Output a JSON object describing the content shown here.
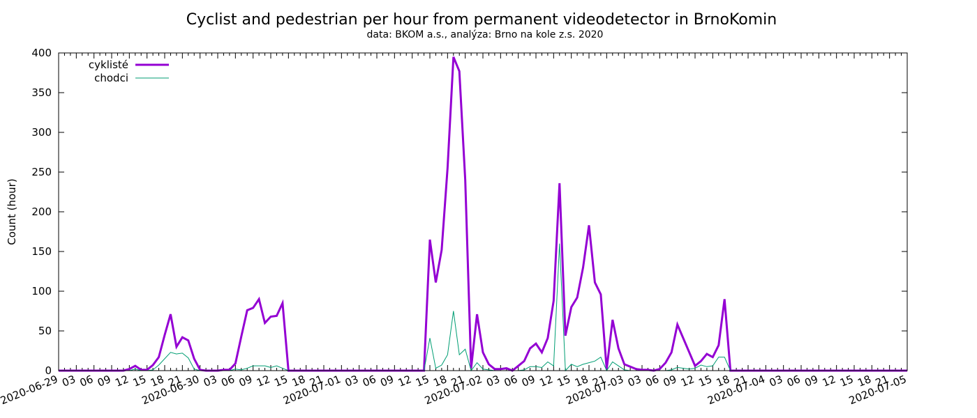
{
  "chart_data": {
    "type": "line",
    "title": "Cyclist and pedestrian per hour from permanent videodetector in BrnoKomin",
    "subtitle": "data: BKOM a.s., analýza: Brno na kole z.s. 2020",
    "xlabel": "",
    "ylabel": "Count (hour)",
    "ylim": [
      0,
      400
    ],
    "yticks": [
      0,
      50,
      100,
      150,
      200,
      250,
      300,
      350,
      400
    ],
    "xlim": [
      "2020-06-29 00:00",
      "2020-07-05 00:00"
    ],
    "x_tick_labels": [
      "2020-06-29",
      "03",
      "06",
      "09",
      "12",
      "15",
      "18",
      "21",
      "2020-06-30",
      "03",
      "06",
      "09",
      "12",
      "15",
      "18",
      "21",
      "2020-07-01",
      "03",
      "06",
      "09",
      "12",
      "15",
      "18",
      "21",
      "2020-07-02",
      "03",
      "06",
      "09",
      "12",
      "15",
      "18",
      "21",
      "2020-07-03",
      "03",
      "06",
      "09",
      "12",
      "15",
      "18",
      "21",
      "2020-07-04",
      "03",
      "06",
      "09",
      "12",
      "15",
      "18",
      "21",
      "2020-07-05"
    ],
    "legend_position": "top-left",
    "grid": false,
    "series": [
      {
        "name": "cyklisté",
        "color": "#9400d3",
        "points": [
          [
            "2020-06-29 00:00",
            0
          ],
          [
            "2020-06-29 11:00",
            0
          ],
          [
            "2020-06-29 12:00",
            2
          ],
          [
            "2020-06-29 13:00",
            6
          ],
          [
            "2020-06-29 14:00",
            1
          ],
          [
            "2020-06-29 15:00",
            1
          ],
          [
            "2020-06-29 16:00",
            7
          ],
          [
            "2020-06-29 17:00",
            17
          ],
          [
            "2020-06-29 18:00",
            45
          ],
          [
            "2020-06-29 19:00",
            71
          ],
          [
            "2020-06-29 20:00",
            30
          ],
          [
            "2020-06-29 21:00",
            42
          ],
          [
            "2020-06-29 22:00",
            38
          ],
          [
            "2020-06-29 23:00",
            15
          ],
          [
            "2020-06-30 00:00",
            1
          ],
          [
            "2020-06-30 01:00",
            0
          ],
          [
            "2020-06-30 02:00",
            0
          ],
          [
            "2020-06-30 03:00",
            0
          ],
          [
            "2020-06-30 04:00",
            1
          ],
          [
            "2020-06-30 05:00",
            1
          ],
          [
            "2020-06-30 06:00",
            9
          ],
          [
            "2020-06-30 07:00",
            43
          ],
          [
            "2020-06-30 08:00",
            76
          ],
          [
            "2020-06-30 09:00",
            79
          ],
          [
            "2020-06-30 10:00",
            90
          ],
          [
            "2020-06-30 11:00",
            60
          ],
          [
            "2020-06-30 12:00",
            68
          ],
          [
            "2020-06-30 13:00",
            69
          ],
          [
            "2020-06-30 14:00",
            85
          ],
          [
            "2020-06-30 15:00",
            0
          ],
          [
            "2020-07-01 00:00",
            0
          ],
          [
            "2020-07-01 12:00",
            0
          ],
          [
            "2020-07-01 14:00",
            0
          ],
          [
            "2020-07-01 15:00",
            165
          ],
          [
            "2020-07-01 16:00",
            111
          ],
          [
            "2020-07-01 17:00",
            152
          ],
          [
            "2020-07-01 18:00",
            255
          ],
          [
            "2020-07-01 19:00",
            395
          ],
          [
            "2020-07-01 20:00",
            377
          ],
          [
            "2020-07-01 21:00",
            240
          ],
          [
            "2020-07-01 22:00",
            3
          ],
          [
            "2020-07-01 23:00",
            71
          ],
          [
            "2020-07-02 00:00",
            23
          ],
          [
            "2020-07-02 01:00",
            8
          ],
          [
            "2020-07-02 02:00",
            2
          ],
          [
            "2020-07-02 03:00",
            2
          ],
          [
            "2020-07-02 04:00",
            3
          ],
          [
            "2020-07-02 05:00",
            0
          ],
          [
            "2020-07-02 06:00",
            6
          ],
          [
            "2020-07-02 07:00",
            12
          ],
          [
            "2020-07-02 08:00",
            28
          ],
          [
            "2020-07-02 09:00",
            34
          ],
          [
            "2020-07-02 10:00",
            23
          ],
          [
            "2020-07-02 11:00",
            41
          ],
          [
            "2020-07-02 12:00",
            88
          ],
          [
            "2020-07-02 13:00",
            236
          ],
          [
            "2020-07-02 14:00",
            44
          ],
          [
            "2020-07-02 15:00",
            80
          ],
          [
            "2020-07-02 16:00",
            92
          ],
          [
            "2020-07-02 17:00",
            130
          ],
          [
            "2020-07-02 18:00",
            183
          ],
          [
            "2020-07-02 19:00",
            111
          ],
          [
            "2020-07-02 20:00",
            96
          ],
          [
            "2020-07-02 21:00",
            2
          ],
          [
            "2020-07-02 22:00",
            64
          ],
          [
            "2020-07-02 23:00",
            28
          ],
          [
            "2020-07-03 00:00",
            8
          ],
          [
            "2020-07-03 01:00",
            5
          ],
          [
            "2020-07-03 02:00",
            2
          ],
          [
            "2020-07-03 03:00",
            1
          ],
          [
            "2020-07-03 04:00",
            1
          ],
          [
            "2020-07-03 05:00",
            0
          ],
          [
            "2020-07-03 06:00",
            2
          ],
          [
            "2020-07-03 07:00",
            10
          ],
          [
            "2020-07-03 08:00",
            23
          ],
          [
            "2020-07-03 09:00",
            58
          ],
          [
            "2020-07-03 12:00",
            6
          ],
          [
            "2020-07-03 13:00",
            12
          ],
          [
            "2020-07-03 14:00",
            21
          ],
          [
            "2020-07-03 15:00",
            17
          ],
          [
            "2020-07-03 16:00",
            32
          ],
          [
            "2020-07-03 17:00",
            90
          ],
          [
            "2020-07-03 18:00",
            0
          ],
          [
            "2020-07-05 00:00",
            0
          ]
        ]
      },
      {
        "name": "chodci",
        "color": "#009e73",
        "points": [
          [
            "2020-06-29 00:00",
            0
          ],
          [
            "2020-06-29 12:00",
            0
          ],
          [
            "2020-06-29 13:00",
            2
          ],
          [
            "2020-06-29 14:00",
            0
          ],
          [
            "2020-06-29 15:00",
            0
          ],
          [
            "2020-06-29 16:00",
            1
          ],
          [
            "2020-06-29 17:00",
            7
          ],
          [
            "2020-06-29 18:00",
            15
          ],
          [
            "2020-06-29 19:00",
            23
          ],
          [
            "2020-06-29 20:00",
            21
          ],
          [
            "2020-06-29 21:00",
            22
          ],
          [
            "2020-06-29 22:00",
            16
          ],
          [
            "2020-06-29 23:00",
            2
          ],
          [
            "2020-06-30 00:00",
            0
          ],
          [
            "2020-06-30 05:00",
            0
          ],
          [
            "2020-06-30 06:00",
            2
          ],
          [
            "2020-06-30 07:00",
            1
          ],
          [
            "2020-06-30 08:00",
            3
          ],
          [
            "2020-06-30 09:00",
            6
          ],
          [
            "2020-06-30 10:00",
            6
          ],
          [
            "2020-06-30 11:00",
            6
          ],
          [
            "2020-06-30 12:00",
            4
          ],
          [
            "2020-06-30 13:00",
            6
          ],
          [
            "2020-06-30 14:00",
            3
          ],
          [
            "2020-06-30 15:00",
            0
          ],
          [
            "2020-07-01 14:00",
            0
          ],
          [
            "2020-07-01 15:00",
            41
          ],
          [
            "2020-07-01 16:00",
            3
          ],
          [
            "2020-07-01 17:00",
            7
          ],
          [
            "2020-07-01 18:00",
            20
          ],
          [
            "2020-07-01 19:00",
            75
          ],
          [
            "2020-07-01 20:00",
            20
          ],
          [
            "2020-07-01 21:00",
            27
          ],
          [
            "2020-07-01 22:00",
            0
          ],
          [
            "2020-07-01 23:00",
            10
          ],
          [
            "2020-07-02 00:00",
            2
          ],
          [
            "2020-07-02 01:00",
            1
          ],
          [
            "2020-07-02 02:00",
            0
          ],
          [
            "2020-07-02 06:00",
            0
          ],
          [
            "2020-07-02 07:00",
            1
          ],
          [
            "2020-07-02 08:00",
            5
          ],
          [
            "2020-07-02 09:00",
            5
          ],
          [
            "2020-07-02 10:00",
            4
          ],
          [
            "2020-07-02 11:00",
            11
          ],
          [
            "2020-07-02 12:00",
            6
          ],
          [
            "2020-07-02 13:00",
            160
          ],
          [
            "2020-07-02 14:00",
            0
          ],
          [
            "2020-07-02 15:00",
            8
          ],
          [
            "2020-07-02 16:00",
            5
          ],
          [
            "2020-07-02 17:00",
            8
          ],
          [
            "2020-07-02 18:00",
            10
          ],
          [
            "2020-07-02 19:00",
            12
          ],
          [
            "2020-07-02 20:00",
            17
          ],
          [
            "2020-07-02 21:00",
            0
          ],
          [
            "2020-07-02 22:00",
            11
          ],
          [
            "2020-07-02 23:00",
            6
          ],
          [
            "2020-07-03 00:00",
            1
          ],
          [
            "2020-07-03 01:00",
            0
          ],
          [
            "2020-07-03 07:00",
            0
          ],
          [
            "2020-07-03 08:00",
            1
          ],
          [
            "2020-07-03 09:00",
            4
          ],
          [
            "2020-07-03 10:00",
            3
          ],
          [
            "2020-07-03 11:00",
            2
          ],
          [
            "2020-07-03 12:00",
            3
          ],
          [
            "2020-07-03 13:00",
            7
          ],
          [
            "2020-07-03 14:00",
            5
          ],
          [
            "2020-07-03 15:00",
            6
          ],
          [
            "2020-07-03 16:00",
            17
          ],
          [
            "2020-07-03 17:00",
            17
          ],
          [
            "2020-07-03 18:00",
            0
          ],
          [
            "2020-07-05 00:00",
            0
          ]
        ]
      }
    ]
  }
}
